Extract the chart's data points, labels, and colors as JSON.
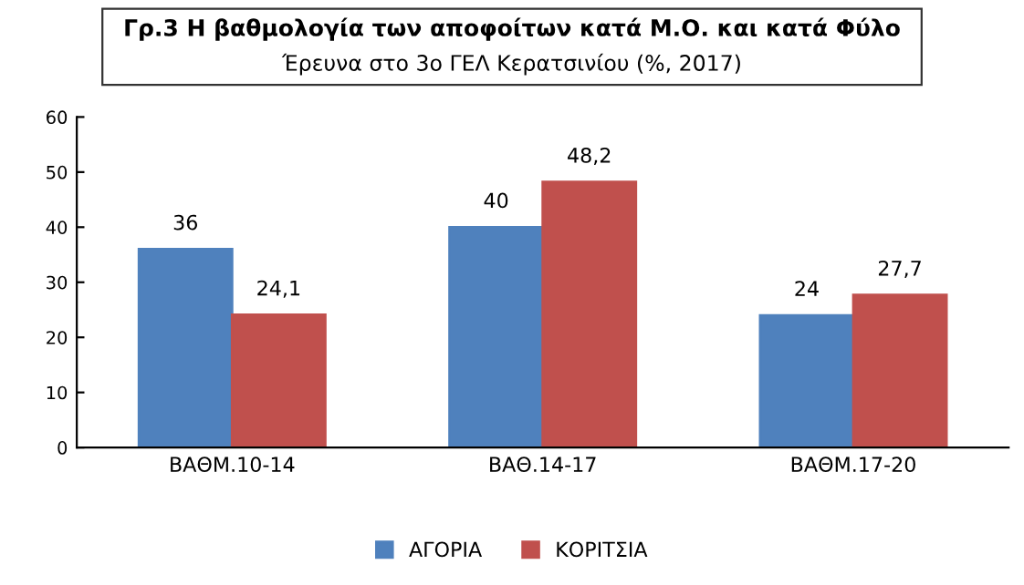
{
  "chart_data": {
    "type": "bar",
    "title": "Γρ.3 Η βαθμολογία των αποφοίτων κατά Μ.Ο. και κατά Φύλο",
    "subtitle": "Έρευνα στο 3ο ΓΕΛ Κερατσινίου (%, 2017)",
    "categories": [
      "ΒΑΘΜ.10-14",
      "ΒΑΘ.14-17",
      "ΒΑΘΜ.17-20"
    ],
    "series": [
      {
        "name": "ΑΓΟΡΙΑ",
        "color": "#4f81bd",
        "values": [
          36,
          40,
          24
        ],
        "value_labels": [
          "36",
          "40",
          "24"
        ]
      },
      {
        "name": "ΚΟΡΙΤΣΙΑ",
        "color": "#c0504d",
        "values": [
          24.1,
          48.2,
          27.7
        ],
        "value_labels": [
          "24,1",
          "48,2",
          "27,7"
        ]
      }
    ],
    "ylim": [
      0,
      60
    ],
    "yticks": [
      0,
      10,
      20,
      30,
      40,
      50,
      60
    ],
    "legend": "bottom",
    "grid": false
  }
}
